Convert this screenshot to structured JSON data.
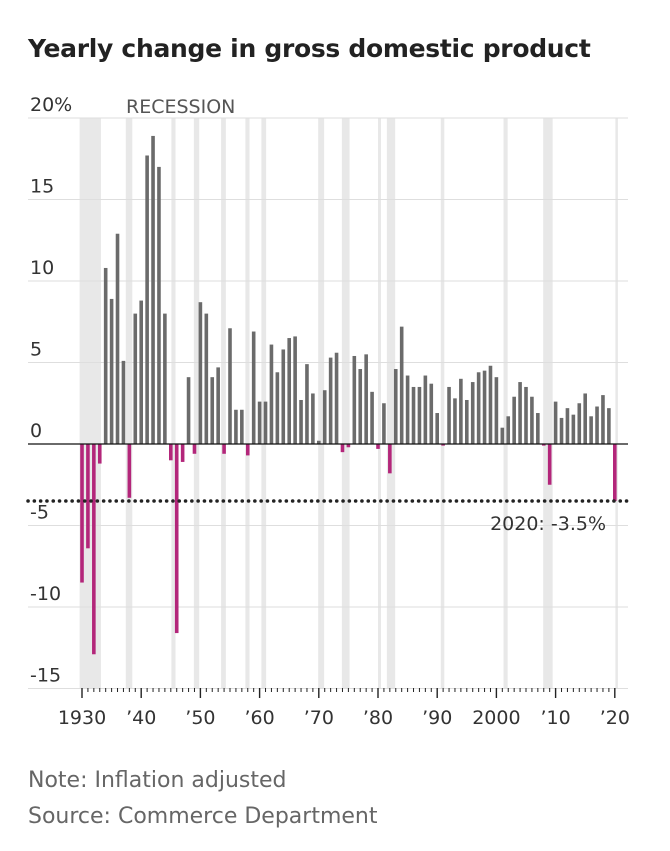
{
  "title": "Yearly change in gross domestic product",
  "note": "Note: Inflation adjusted",
  "source": "Source: Commerce Department",
  "colors": {
    "positive": "#6b6b6b",
    "negative": "#b3267a",
    "recession": "#e8e8e8",
    "grid": "#dedede",
    "text": "#333333"
  },
  "chart_data": {
    "type": "bar",
    "title": "Yearly change in gross domestic product",
    "xlabel": "",
    "ylabel": "",
    "unit": "%",
    "ylim": [
      -15,
      20
    ],
    "y_ticks": [
      {
        "value": 20,
        "label": "20%"
      },
      {
        "value": 15,
        "label": "15"
      },
      {
        "value": 10,
        "label": "10"
      },
      {
        "value": 5,
        "label": "5"
      },
      {
        "value": 0,
        "label": "0"
      },
      {
        "value": -5,
        "label": "-5"
      },
      {
        "value": -10,
        "label": "-10"
      },
      {
        "value": -15,
        "label": "-15"
      }
    ],
    "x_ticks": [
      {
        "year": 1930,
        "label": "1930"
      },
      {
        "year": 1940,
        "label": "’40"
      },
      {
        "year": 1950,
        "label": "’50"
      },
      {
        "year": 1960,
        "label": "’60"
      },
      {
        "year": 1970,
        "label": "’70"
      },
      {
        "year": 1980,
        "label": "’80"
      },
      {
        "year": 1990,
        "label": "’90"
      },
      {
        "year": 2000,
        "label": "2000"
      },
      {
        "year": 2010,
        "label": "’10"
      },
      {
        "year": 2020,
        "label": "’20"
      }
    ],
    "recession_label": "RECESSION",
    "recessions": [
      [
        1929.6,
        1933.2
      ],
      [
        1937.4,
        1938.5
      ],
      [
        1945.1,
        1945.8
      ],
      [
        1948.9,
        1949.8
      ],
      [
        1953.5,
        1954.3
      ],
      [
        1957.6,
        1958.3
      ],
      [
        1960.3,
        1961.1
      ],
      [
        1969.9,
        1970.9
      ],
      [
        1973.9,
        1975.2
      ],
      [
        1980.0,
        1980.5
      ],
      [
        1981.5,
        1982.9
      ],
      [
        1990.6,
        1991.2
      ],
      [
        2001.2,
        2001.9
      ],
      [
        2007.9,
        2009.5
      ],
      [
        2020.1,
        2020.4
      ]
    ],
    "reference_line": {
      "value": -3.5,
      "label": "2020: -3.5%"
    },
    "x": [
      1930,
      1931,
      1932,
      1933,
      1934,
      1935,
      1936,
      1937,
      1938,
      1939,
      1940,
      1941,
      1942,
      1943,
      1944,
      1945,
      1946,
      1947,
      1948,
      1949,
      1950,
      1951,
      1952,
      1953,
      1954,
      1955,
      1956,
      1957,
      1958,
      1959,
      1960,
      1961,
      1962,
      1963,
      1964,
      1965,
      1966,
      1967,
      1968,
      1969,
      1970,
      1971,
      1972,
      1973,
      1974,
      1975,
      1976,
      1977,
      1978,
      1979,
      1980,
      1981,
      1982,
      1983,
      1984,
      1985,
      1986,
      1987,
      1988,
      1989,
      1990,
      1991,
      1992,
      1993,
      1994,
      1995,
      1996,
      1997,
      1998,
      1999,
      2000,
      2001,
      2002,
      2003,
      2004,
      2005,
      2006,
      2007,
      2008,
      2009,
      2010,
      2011,
      2012,
      2013,
      2014,
      2015,
      2016,
      2017,
      2018,
      2019,
      2020
    ],
    "values": [
      -8.5,
      -6.4,
      -12.9,
      -1.2,
      10.8,
      8.9,
      12.9,
      5.1,
      -3.3,
      8.0,
      8.8,
      17.7,
      18.9,
      17.0,
      8.0,
      -1.0,
      -11.6,
      -1.1,
      4.1,
      -0.6,
      8.7,
      8.0,
      4.1,
      4.7,
      -0.6,
      7.1,
      2.1,
      2.1,
      -0.7,
      6.9,
      2.6,
      2.6,
      6.1,
      4.4,
      5.8,
      6.5,
      6.6,
      2.7,
      4.9,
      3.1,
      0.2,
      3.3,
      5.3,
      5.6,
      -0.5,
      -0.2,
      5.4,
      4.6,
      5.5,
      3.2,
      -0.3,
      2.5,
      -1.8,
      4.6,
      7.2,
      4.2,
      3.5,
      3.5,
      4.2,
      3.7,
      1.9,
      -0.1,
      3.5,
      2.8,
      4.0,
      2.7,
      3.8,
      4.4,
      4.5,
      4.8,
      4.1,
      1.0,
      1.7,
      2.9,
      3.8,
      3.5,
      2.9,
      1.9,
      -0.1,
      -2.5,
      2.6,
      1.6,
      2.2,
      1.8,
      2.5,
      3.1,
      1.7,
      2.3,
      3.0,
      2.2,
      -3.5
    ]
  }
}
